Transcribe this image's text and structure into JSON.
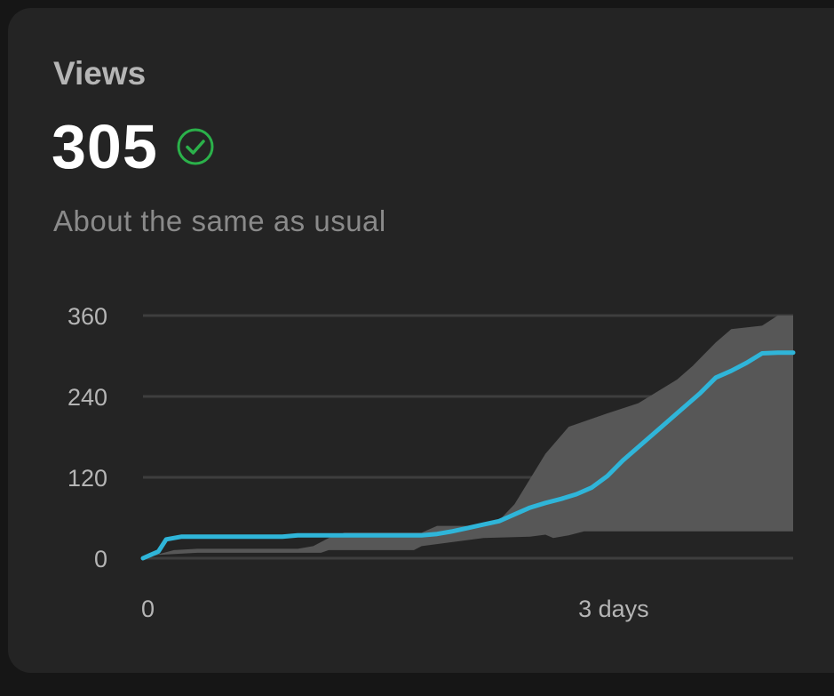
{
  "card": {
    "title": "Views",
    "value": "305",
    "status": "About the same as usual",
    "status_icon": "check-circle-icon"
  },
  "colors": {
    "background": "#161616",
    "card": "#242424",
    "line": "#2fb5d9",
    "band": "#575757",
    "grid": "#3e3e3e",
    "check": "#2bb14a",
    "text_primary": "#ffffff",
    "text_secondary": "#b5b5b5",
    "text_muted": "#8a8a8a"
  },
  "chart_data": {
    "type": "line",
    "title": "",
    "xlabel": "",
    "ylabel": "",
    "x_unit": "days",
    "xlim": [
      0,
      4.2
    ],
    "ylim": [
      0,
      360
    ],
    "y_ticks": [
      {
        "value": 0,
        "label": "0"
      },
      {
        "value": 120,
        "label": "120"
      },
      {
        "value": 240,
        "label": "240"
      },
      {
        "value": 360,
        "label": "360"
      }
    ],
    "x_ticks": [
      {
        "value": 0,
        "label": "0"
      },
      {
        "value": 3,
        "label": "3 days"
      }
    ],
    "grid": true,
    "legend": "none",
    "band": {
      "upper": [
        [
          0,
          0
        ],
        [
          0.1,
          6
        ],
        [
          0.2,
          12
        ],
        [
          0.35,
          14
        ],
        [
          1,
          14
        ],
        [
          1.1,
          18
        ],
        [
          1.2,
          30
        ],
        [
          1.3,
          38
        ],
        [
          1.8,
          38
        ],
        [
          1.9,
          48
        ],
        [
          2.2,
          48
        ],
        [
          2.3,
          56
        ],
        [
          2.4,
          80
        ],
        [
          2.6,
          155
        ],
        [
          2.75,
          195
        ],
        [
          3.0,
          215
        ],
        [
          3.2,
          230
        ],
        [
          3.45,
          265
        ],
        [
          3.55,
          285
        ],
        [
          3.7,
          320
        ],
        [
          3.8,
          340
        ],
        [
          4.0,
          345
        ],
        [
          4.1,
          360
        ],
        [
          4.2,
          360
        ]
      ],
      "lower": [
        [
          0,
          0
        ],
        [
          0.1,
          5
        ],
        [
          0.35,
          8
        ],
        [
          1.15,
          8
        ],
        [
          1.2,
          12
        ],
        [
          1.75,
          12
        ],
        [
          1.8,
          18
        ],
        [
          2.2,
          30
        ],
        [
          2.5,
          32
        ],
        [
          2.6,
          35
        ],
        [
          2.65,
          30
        ],
        [
          2.7,
          32
        ],
        [
          2.75,
          34
        ],
        [
          2.85,
          40
        ],
        [
          3.0,
          40
        ],
        [
          3.5,
          40
        ],
        [
          4.2,
          40
        ]
      ]
    },
    "series": [
      {
        "values": [
          [
            0,
            0
          ],
          [
            0.05,
            5
          ],
          [
            0.1,
            10
          ],
          [
            0.15,
            28
          ],
          [
            0.25,
            32
          ],
          [
            0.5,
            32
          ],
          [
            0.8,
            32
          ],
          [
            0.9,
            32
          ],
          [
            1.0,
            34
          ],
          [
            1.5,
            34
          ],
          [
            1.8,
            34
          ],
          [
            1.9,
            36
          ],
          [
            2.0,
            40
          ],
          [
            2.1,
            45
          ],
          [
            2.2,
            50
          ],
          [
            2.3,
            55
          ],
          [
            2.4,
            65
          ],
          [
            2.5,
            75
          ],
          [
            2.6,
            82
          ],
          [
            2.7,
            88
          ],
          [
            2.8,
            95
          ],
          [
            2.9,
            105
          ],
          [
            3.0,
            122
          ],
          [
            3.1,
            145
          ],
          [
            3.2,
            165
          ],
          [
            3.35,
            195
          ],
          [
            3.5,
            225
          ],
          [
            3.6,
            245
          ],
          [
            3.7,
            268
          ],
          [
            3.8,
            278
          ],
          [
            3.9,
            290
          ],
          [
            4.0,
            304
          ],
          [
            4.1,
            305
          ],
          [
            4.2,
            305
          ]
        ]
      }
    ]
  }
}
